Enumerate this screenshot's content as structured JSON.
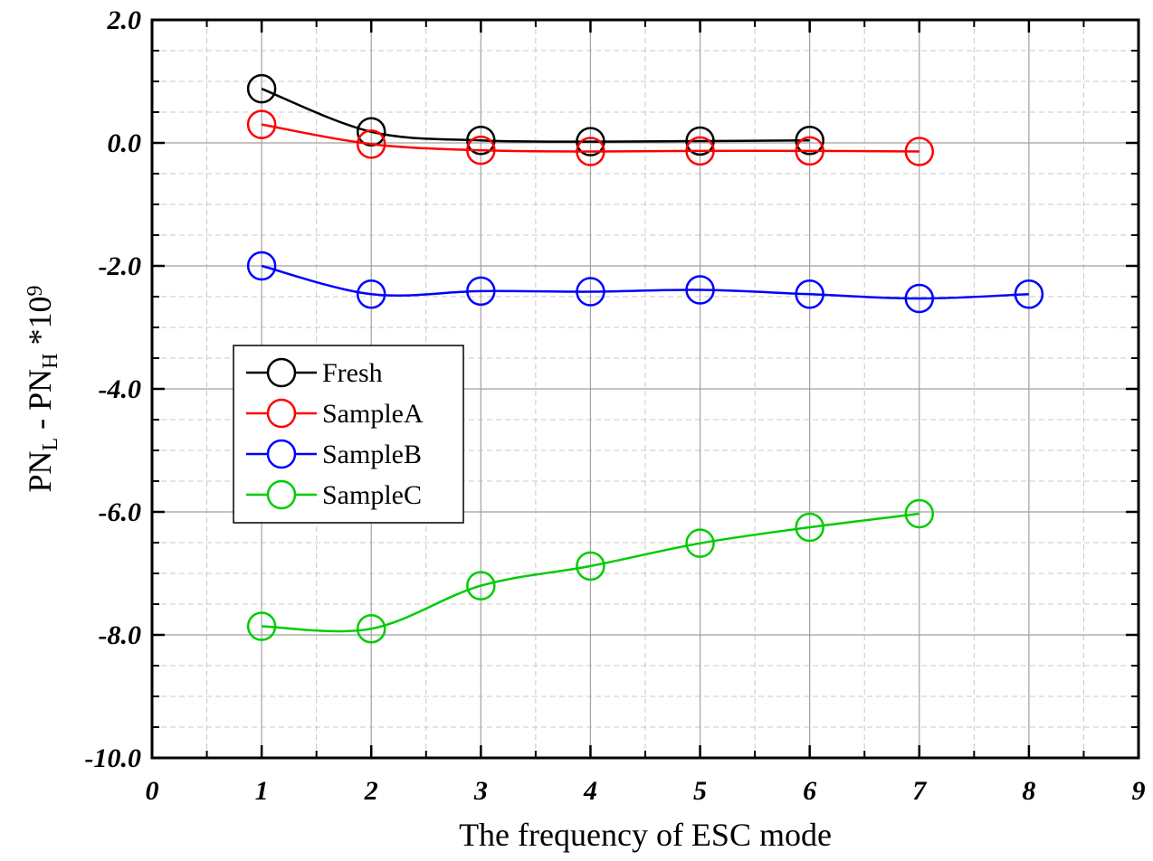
{
  "chart_data": {
    "type": "line",
    "title": "",
    "xlabel": "The frequency of ESC mode",
    "ylabel": {
      "parts": [
        {
          "text": "PN",
          "shift": "none"
        },
        {
          "text": "L",
          "shift": "sub"
        },
        {
          "text": " - PN",
          "shift": "none"
        },
        {
          "text": "H",
          "shift": "sub"
        },
        {
          "text": " *10",
          "shift": "none"
        },
        {
          "text": "9",
          "shift": "super"
        }
      ]
    },
    "xlim": [
      0,
      9
    ],
    "ylim": [
      -10,
      2
    ],
    "x_ticks": [
      0,
      1,
      2,
      3,
      4,
      5,
      6,
      7,
      8,
      9
    ],
    "x_tick_labels": [
      "0",
      "1",
      "2",
      "3",
      "4",
      "5",
      "6",
      "7",
      "8",
      "9"
    ],
    "y_ticks": [
      -10,
      -8,
      -6,
      -4,
      -2,
      0,
      2
    ],
    "y_tick_labels": [
      "-10.0",
      "-8.0",
      "-6.0",
      "-4.0",
      "-2.0",
      "0.0",
      "2.0"
    ],
    "grid": true,
    "legend_position": "middle-left",
    "marker": "open-circle",
    "series": [
      {
        "name": "Fresh",
        "color": "#000000",
        "x": [
          1,
          2,
          3,
          4,
          5,
          6
        ],
        "y": [
          0.88,
          0.18,
          0.04,
          0.02,
          0.03,
          0.04
        ]
      },
      {
        "name": "SampleA",
        "color": "#ff0000",
        "x": [
          1,
          2,
          3,
          4,
          5,
          6,
          7
        ],
        "y": [
          0.3,
          -0.02,
          -0.12,
          -0.14,
          -0.13,
          -0.13,
          -0.14
        ]
      },
      {
        "name": "SampleB",
        "color": "#0000ff",
        "x": [
          1,
          2,
          3,
          4,
          5,
          6,
          7,
          8
        ],
        "y": [
          -2.0,
          -2.46,
          -2.41,
          -2.42,
          -2.39,
          -2.46,
          -2.53,
          -2.46
        ]
      },
      {
        "name": "SampleC",
        "color": "#00cc00",
        "x": [
          1,
          2,
          3,
          4,
          5,
          6,
          7
        ],
        "y": [
          -7.86,
          -7.9,
          -7.2,
          -6.88,
          -6.51,
          -6.25,
          -6.03
        ]
      }
    ]
  }
}
